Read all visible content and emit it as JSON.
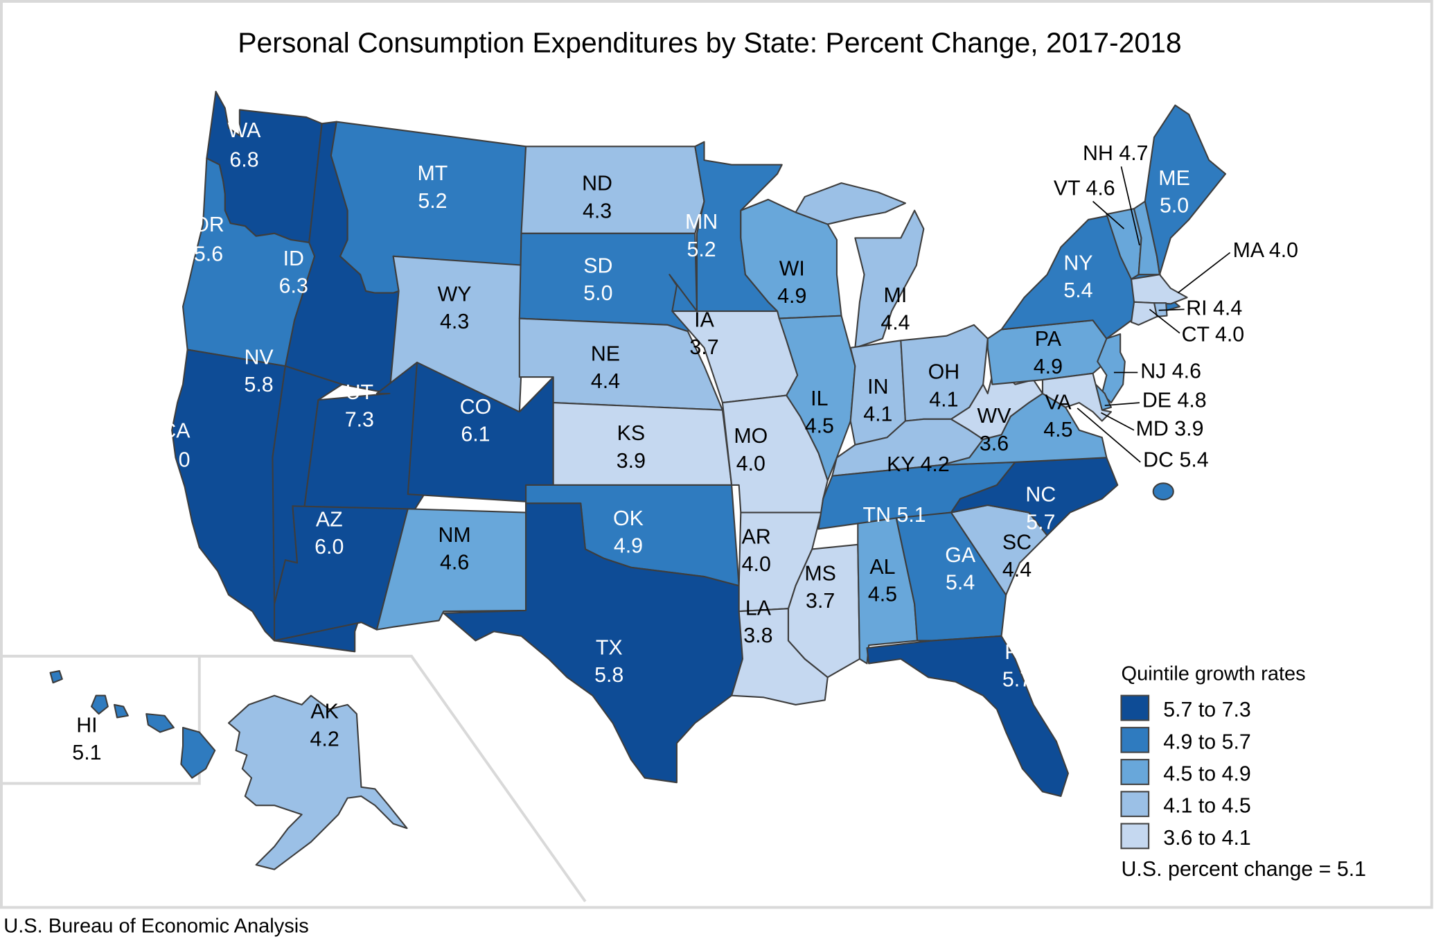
{
  "title": "Personal Consumption Expenditures by State: Percent Change, 2017-2018",
  "source": "U.S. Bureau of Economic Analysis",
  "legend": {
    "title": "Quintile growth rates",
    "items": [
      {
        "label": "5.7 to 7.3",
        "color": "#0e4c96"
      },
      {
        "label": "4.9 to 5.7",
        "color": "#2f7bbf"
      },
      {
        "label": "4.5 to 4.9",
        "color": "#68a7da"
      },
      {
        "label": "4.1 to 4.5",
        "color": "#9bc0e6"
      },
      {
        "label": "3.6 to 4.1",
        "color": "#c5d8f0"
      }
    ],
    "us_note": "U.S. percent change = 5.1"
  },
  "chart_data": {
    "type": "choropleth",
    "title": "Personal Consumption Expenditures by State: Percent Change, 2017-2018",
    "unit": "percent change",
    "us_value": 5.1,
    "bins": [
      {
        "label": "5.7 to 7.3",
        "min": 5.7,
        "max": 7.3,
        "color": "#0e4c96"
      },
      {
        "label": "4.9 to 5.7",
        "min": 4.9,
        "max": 5.7,
        "color": "#2f7bbf"
      },
      {
        "label": "4.5 to 4.9",
        "min": 4.5,
        "max": 4.9,
        "color": "#68a7da"
      },
      {
        "label": "4.1 to 4.5",
        "min": 4.1,
        "max": 4.5,
        "color": "#9bc0e6"
      },
      {
        "label": "3.6 to 4.1",
        "min": 3.6,
        "max": 4.1,
        "color": "#c5d8f0"
      }
    ],
    "states": [
      {
        "abbr": "WA",
        "value": 6.8,
        "bin": 0
      },
      {
        "abbr": "OR",
        "value": 5.6,
        "bin": 1
      },
      {
        "abbr": "CA",
        "value": 6.0,
        "bin": 0
      },
      {
        "abbr": "ID",
        "value": 6.3,
        "bin": 0
      },
      {
        "abbr": "NV",
        "value": 5.8,
        "bin": 0
      },
      {
        "abbr": "MT",
        "value": 5.2,
        "bin": 1
      },
      {
        "abbr": "WY",
        "value": 4.3,
        "bin": 3
      },
      {
        "abbr": "UT",
        "value": 7.3,
        "bin": 0
      },
      {
        "abbr": "CO",
        "value": 6.1,
        "bin": 0
      },
      {
        "abbr": "AZ",
        "value": 6.0,
        "bin": 0
      },
      {
        "abbr": "NM",
        "value": 4.6,
        "bin": 2
      },
      {
        "abbr": "ND",
        "value": 4.3,
        "bin": 3
      },
      {
        "abbr": "SD",
        "value": 5.0,
        "bin": 1
      },
      {
        "abbr": "NE",
        "value": 4.4,
        "bin": 3
      },
      {
        "abbr": "KS",
        "value": 3.9,
        "bin": 4
      },
      {
        "abbr": "OK",
        "value": 4.9,
        "bin": 1
      },
      {
        "abbr": "TX",
        "value": 5.8,
        "bin": 0
      },
      {
        "abbr": "MN",
        "value": 5.2,
        "bin": 1
      },
      {
        "abbr": "IA",
        "value": 3.7,
        "bin": 4
      },
      {
        "abbr": "MO",
        "value": 4.0,
        "bin": 4
      },
      {
        "abbr": "AR",
        "value": 4.0,
        "bin": 4
      },
      {
        "abbr": "LA",
        "value": 3.8,
        "bin": 4
      },
      {
        "abbr": "WI",
        "value": 4.9,
        "bin": 2
      },
      {
        "abbr": "IL",
        "value": 4.5,
        "bin": 2
      },
      {
        "abbr": "MS",
        "value": 3.7,
        "bin": 4
      },
      {
        "abbr": "MI",
        "value": 4.4,
        "bin": 3
      },
      {
        "abbr": "IN",
        "value": 4.1,
        "bin": 3
      },
      {
        "abbr": "OH",
        "value": 4.1,
        "bin": 3
      },
      {
        "abbr": "KY",
        "value": 4.2,
        "bin": 3
      },
      {
        "abbr": "TN",
        "value": 5.1,
        "bin": 1
      },
      {
        "abbr": "AL",
        "value": 4.5,
        "bin": 2
      },
      {
        "abbr": "GA",
        "value": 5.4,
        "bin": 1
      },
      {
        "abbr": "FL",
        "value": 5.7,
        "bin": 0
      },
      {
        "abbr": "SC",
        "value": 4.4,
        "bin": 3
      },
      {
        "abbr": "NC",
        "value": 5.7,
        "bin": 0
      },
      {
        "abbr": "VA",
        "value": 4.5,
        "bin": 2
      },
      {
        "abbr": "WV",
        "value": 3.6,
        "bin": 4
      },
      {
        "abbr": "PA",
        "value": 4.9,
        "bin": 2
      },
      {
        "abbr": "NY",
        "value": 5.4,
        "bin": 1
      },
      {
        "abbr": "VT",
        "value": 4.6,
        "bin": 2
      },
      {
        "abbr": "NH",
        "value": 4.7,
        "bin": 2
      },
      {
        "abbr": "ME",
        "value": 5.0,
        "bin": 1
      },
      {
        "abbr": "MA",
        "value": 4.0,
        "bin": 4
      },
      {
        "abbr": "RI",
        "value": 4.4,
        "bin": 3
      },
      {
        "abbr": "CT",
        "value": 4.0,
        "bin": 4
      },
      {
        "abbr": "NJ",
        "value": 4.6,
        "bin": 2
      },
      {
        "abbr": "DE",
        "value": 4.8,
        "bin": 2
      },
      {
        "abbr": "MD",
        "value": 3.9,
        "bin": 4
      },
      {
        "abbr": "DC",
        "value": 5.4,
        "bin": 1
      },
      {
        "abbr": "AK",
        "value": 4.2,
        "bin": 3
      },
      {
        "abbr": "HI",
        "value": 5.1,
        "bin": 1
      }
    ]
  }
}
